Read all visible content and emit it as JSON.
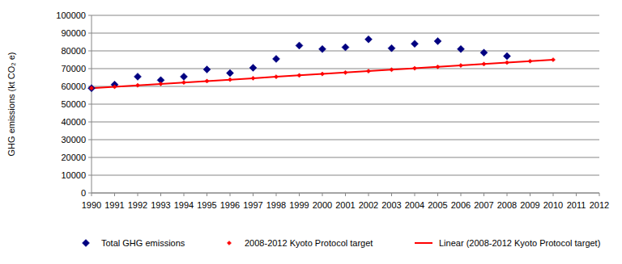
{
  "chart_data": {
    "type": "scatter",
    "y_label": "GHG emissions (kt CO₂ e)",
    "x": [
      1990,
      1991,
      1992,
      1993,
      1994,
      1995,
      1996,
      1997,
      1998,
      1999,
      2000,
      2001,
      2002,
      2003,
      2004,
      2005,
      2006,
      2007,
      2008,
      2009,
      2010,
      2011,
      2012
    ],
    "xlim": [
      1990,
      2012
    ],
    "xticks": [
      1990,
      1991,
      1992,
      1993,
      1994,
      1995,
      1996,
      1997,
      1998,
      1999,
      2000,
      2001,
      2002,
      2003,
      2004,
      2005,
      2006,
      2007,
      2008,
      2009,
      2010,
      2011,
      2012
    ],
    "ylim": [
      0,
      100000
    ],
    "yticks": [
      0,
      10000,
      20000,
      30000,
      40000,
      50000,
      60000,
      70000,
      80000,
      90000,
      100000
    ],
    "grid": true,
    "legend": "bottom",
    "series": [
      {
        "name": "Total GHG emissions",
        "type": "scatter",
        "color": "#000080",
        "marker": "diamond",
        "values": [
          59000,
          61000,
          65500,
          63500,
          65500,
          69500,
          67500,
          70500,
          75500,
          83000,
          81000,
          82000,
          86500,
          81500,
          84000,
          85500,
          81000,
          79000,
          77000,
          null,
          null,
          null,
          null
        ]
      },
      {
        "name": "2008-2012 Kyoto Protocol target",
        "type": "scatter",
        "color": "#ff0000",
        "marker": "diamond",
        "values": [
          59000,
          59800,
          60600,
          61400,
          62200,
          63000,
          63800,
          64600,
          65400,
          66200,
          67000,
          67800,
          68600,
          69400,
          70200,
          71000,
          71800,
          72600,
          73400,
          74200,
          75000,
          null,
          null
        ]
      },
      {
        "name": "Linear (2008-2012 Kyoto Protocol target)",
        "type": "line",
        "color": "#ff0000",
        "line_style": "solid",
        "values": [
          59000,
          59800,
          60600,
          61400,
          62200,
          63000,
          63800,
          64600,
          65400,
          66200,
          67000,
          67800,
          68600,
          69400,
          70200,
          71000,
          71800,
          72600,
          73400,
          74200,
          75000,
          null,
          null
        ]
      }
    ]
  }
}
